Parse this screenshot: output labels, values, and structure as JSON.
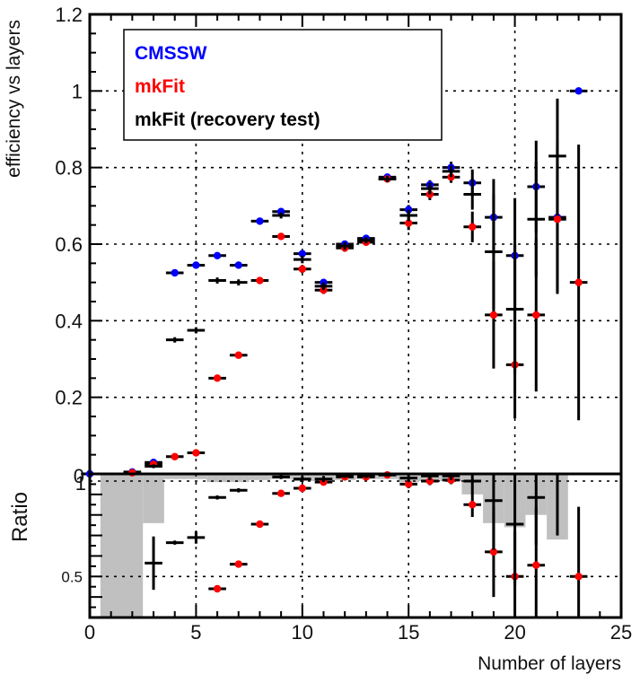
{
  "chart_data": [
    {
      "type": "scatter",
      "name": "efficiency-panel",
      "xlabel": "Number of layers",
      "ylabel": "efficiency vs layers",
      "xlim": [
        0,
        25
      ],
      "ylim": [
        0,
        1.2
      ],
      "xticks": [
        0,
        5,
        10,
        15,
        20,
        25
      ],
      "xtick_labels": [
        "0",
        "5",
        "10",
        "15",
        "20",
        "25"
      ],
      "yticks": [
        0.2,
        0.4,
        0.6,
        0.8,
        1,
        1.2
      ],
      "ytick_labels": [
        "0.2",
        "0.4",
        "0.6",
        "0.8",
        "1",
        "1.2"
      ],
      "yzero_label": "0",
      "grid": true,
      "legend_position": "top-left",
      "series": [
        {
          "name": "CMSSW",
          "color": "#0000ff",
          "points": [
            {
              "x": 0,
              "y": 0.0,
              "err": 0
            },
            {
              "x": 2,
              "y": 0.005,
              "err": 0.003
            },
            {
              "x": 3,
              "y": 0.03,
              "err": 0.005
            },
            {
              "x": 4,
              "y": 0.525,
              "err": 0.005
            },
            {
              "x": 5,
              "y": 0.545,
              "err": 0.005
            },
            {
              "x": 6,
              "y": 0.57,
              "err": 0.006
            },
            {
              "x": 7,
              "y": 0.545,
              "err": 0.007
            },
            {
              "x": 8,
              "y": 0.66,
              "err": 0.006
            },
            {
              "x": 9,
              "y": 0.685,
              "err": 0.006
            },
            {
              "x": 10,
              "y": 0.575,
              "err": 0.008
            },
            {
              "x": 11,
              "y": 0.5,
              "err": 0.008
            },
            {
              "x": 12,
              "y": 0.6,
              "err": 0.008
            },
            {
              "x": 13,
              "y": 0.615,
              "err": 0.008
            },
            {
              "x": 14,
              "y": 0.775,
              "err": 0.006
            },
            {
              "x": 15,
              "y": 0.69,
              "err": 0.012
            },
            {
              "x": 16,
              "y": 0.755,
              "err": 0.012
            },
            {
              "x": 17,
              "y": 0.8,
              "err": 0.015
            },
            {
              "x": 18,
              "y": 0.76,
              "err": 0.035
            },
            {
              "x": 19,
              "y": 0.67,
              "err": 0.1
            },
            {
              "x": 20,
              "y": 0.57,
              "err": 0.15
            },
            {
              "x": 21,
              "y": 0.75,
              "err": 0.12
            },
            {
              "x": 22,
              "y": 0.67,
              "err": 0.2
            },
            {
              "x": 23,
              "y": 1.0,
              "err": 0.003
            }
          ]
        },
        {
          "name": "mkFit",
          "color": "#ff0000",
          "points": [
            {
              "x": 2,
              "y": 0.003,
              "err": 0.003
            },
            {
              "x": 3,
              "y": 0.025,
              "err": 0.005
            },
            {
              "x": 4,
              "y": 0.045,
              "err": 0.005
            },
            {
              "x": 5,
              "y": 0.055,
              "err": 0.005
            },
            {
              "x": 6,
              "y": 0.25,
              "err": 0.008
            },
            {
              "x": 7,
              "y": 0.31,
              "err": 0.008
            },
            {
              "x": 8,
              "y": 0.505,
              "err": 0.008
            },
            {
              "x": 9,
              "y": 0.62,
              "err": 0.008
            },
            {
              "x": 10,
              "y": 0.535,
              "err": 0.01
            },
            {
              "x": 11,
              "y": 0.48,
              "err": 0.01
            },
            {
              "x": 12,
              "y": 0.59,
              "err": 0.01
            },
            {
              "x": 13,
              "y": 0.605,
              "err": 0.008
            },
            {
              "x": 14,
              "y": 0.77,
              "err": 0.008
            },
            {
              "x": 15,
              "y": 0.655,
              "err": 0.018
            },
            {
              "x": 16,
              "y": 0.73,
              "err": 0.015
            },
            {
              "x": 17,
              "y": 0.775,
              "err": 0.015
            },
            {
              "x": 18,
              "y": 0.645,
              "err": 0.04
            },
            {
              "x": 19,
              "y": 0.415,
              "err": 0.14
            },
            {
              "x": 20,
              "y": 0.285,
              "err": 0.14
            },
            {
              "x": 21,
              "y": 0.415,
              "err": 0.2
            },
            {
              "x": 22,
              "y": 0.665,
              "err": 0.19
            },
            {
              "x": 23,
              "y": 0.5,
              "err": 0.36
            }
          ]
        },
        {
          "name": "mkFit (recovery test)",
          "color": "#000000",
          "points": [
            {
              "x": 3,
              "y": 0.02,
              "err": 0.005
            },
            {
              "x": 4,
              "y": 0.35,
              "err": 0.007
            },
            {
              "x": 5,
              "y": 0.375,
              "err": 0.008
            },
            {
              "x": 6,
              "y": 0.505,
              "err": 0.008
            },
            {
              "x": 7,
              "y": 0.5,
              "err": 0.008
            },
            {
              "x": 9,
              "y": 0.675,
              "err": 0.008
            },
            {
              "x": 10,
              "y": 0.56,
              "err": 0.01
            },
            {
              "x": 11,
              "y": 0.49,
              "err": 0.01
            },
            {
              "x": 12,
              "y": 0.595,
              "err": 0.01
            },
            {
              "x": 13,
              "y": 0.61,
              "err": 0.008
            },
            {
              "x": 14,
              "y": 0.77,
              "err": 0.008
            },
            {
              "x": 15,
              "y": 0.675,
              "err": 0.015
            },
            {
              "x": 16,
              "y": 0.745,
              "err": 0.015
            },
            {
              "x": 17,
              "y": 0.79,
              "err": 0.015
            },
            {
              "x": 18,
              "y": 0.73,
              "err": 0.04
            },
            {
              "x": 19,
              "y": 0.58,
              "err": 0.15
            },
            {
              "x": 20,
              "y": 0.43,
              "err": 0.17
            },
            {
              "x": 21,
              "y": 0.665,
              "err": 0.15
            },
            {
              "x": 22,
              "y": 0.83,
              "err": 0.15
            },
            {
              "x": 23,
              "y": 0.0,
              "err": 0
            }
          ]
        }
      ]
    },
    {
      "type": "scatter",
      "name": "ratio-panel",
      "ylabel": "Ratio",
      "xlim": [
        0,
        25
      ],
      "ylim": [
        0.3,
        1.0
      ],
      "yticks": [
        0.5
      ],
      "ytick_labels": [
        "0.5"
      ],
      "ytop_label": "1",
      "grid": true,
      "band": {
        "color": "#c0c0c0",
        "description_bins": [
          {
            "x0": 0.5,
            "x1": 1.5,
            "low": 0.3,
            "high": 1.0
          },
          {
            "x0": 1.5,
            "x1": 2.5,
            "low": 0.3,
            "high": 1.0
          },
          {
            "x0": 2.5,
            "x1": 3.5,
            "low": 0.76,
            "high": 1.0
          },
          {
            "x0": 3.5,
            "x1": 4.5,
            "low": 0.975,
            "high": 1.0
          },
          {
            "x0": 4.5,
            "x1": 5.5,
            "low": 0.975,
            "high": 1.0
          },
          {
            "x0": 5.5,
            "x1": 6.5,
            "low": 0.96,
            "high": 1.0
          },
          {
            "x0": 6.5,
            "x1": 7.5,
            "low": 0.96,
            "high": 1.0
          },
          {
            "x0": 7.5,
            "x1": 8.5,
            "low": 0.97,
            "high": 1.0
          },
          {
            "x0": 8.5,
            "x1": 9.5,
            "low": 0.975,
            "high": 1.0
          },
          {
            "x0": 9.5,
            "x1": 10.5,
            "low": 0.965,
            "high": 1.0
          },
          {
            "x0": 10.5,
            "x1": 11.5,
            "low": 0.965,
            "high": 1.0
          },
          {
            "x0": 11.5,
            "x1": 12.5,
            "low": 0.97,
            "high": 1.0
          },
          {
            "x0": 12.5,
            "x1": 13.5,
            "low": 0.975,
            "high": 1.0
          },
          {
            "x0": 13.5,
            "x1": 14.5,
            "low": 0.975,
            "high": 1.0
          },
          {
            "x0": 14.5,
            "x1": 15.5,
            "low": 0.96,
            "high": 1.0
          },
          {
            "x0": 15.5,
            "x1": 16.5,
            "low": 0.965,
            "high": 1.0
          },
          {
            "x0": 16.5,
            "x1": 17.5,
            "low": 0.965,
            "high": 1.0
          },
          {
            "x0": 17.5,
            "x1": 18.5,
            "low": 0.9,
            "high": 1.0
          },
          {
            "x0": 18.5,
            "x1": 19.5,
            "low": 0.76,
            "high": 1.0
          },
          {
            "x0": 19.5,
            "x1": 20.5,
            "low": 0.74,
            "high": 1.0
          },
          {
            "x0": 20.5,
            "x1": 21.5,
            "low": 0.8,
            "high": 1.0
          },
          {
            "x0": 21.5,
            "x1": 22.5,
            "low": 0.68,
            "high": 1.0
          },
          {
            "x0": 22.5,
            "x1": 23.5,
            "low": 1.0,
            "high": 1.0
          }
        ]
      },
      "series": [
        {
          "name": "mkFit",
          "color": "#ff0000",
          "points": [
            {
              "x": 8,
              "y": 0.755,
              "err": 0.01
            },
            {
              "x": 9,
              "y": 0.905,
              "err": 0.01
            },
            {
              "x": 10,
              "y": 0.93,
              "err": 0.015
            },
            {
              "x": 11,
              "y": 0.96,
              "err": 0.015
            },
            {
              "x": 12,
              "y": 0.985,
              "err": 0.01
            },
            {
              "x": 13,
              "y": 0.985,
              "err": 0.01
            },
            {
              "x": 14,
              "y": 0.995,
              "err": 0.008
            },
            {
              "x": 15,
              "y": 0.95,
              "err": 0.02
            },
            {
              "x": 16,
              "y": 0.965,
              "err": 0.02
            },
            {
              "x": 17,
              "y": 0.97,
              "err": 0.02
            },
            {
              "x": 18,
              "y": 0.85,
              "err": 0.06
            },
            {
              "x": 19,
              "y": 0.62,
              "err": 0.22
            },
            {
              "x": 20,
              "y": 0.5,
              "err": 0.22
            },
            {
              "x": 21,
              "y": 0.555,
              "err": 0.28
            },
            {
              "x": 23,
              "y": 0.5,
              "err": 0.34
            },
            {
              "x": 7,
              "y": 0.56,
              "err": 0.01
            },
            {
              "x": 6,
              "y": 0.44,
              "err": 0.01
            }
          ]
        },
        {
          "name": "mkFit (recovery test)",
          "color": "#000000",
          "points": [
            {
              "x": 3,
              "y": 0.565,
              "err": 0.13
            },
            {
              "x": 4,
              "y": 0.665,
              "err": 0.01
            },
            {
              "x": 5,
              "y": 0.69,
              "err": 0.03
            },
            {
              "x": 6,
              "y": 0.885,
              "err": 0.01
            },
            {
              "x": 7,
              "y": 0.92,
              "err": 0.01
            },
            {
              "x": 9,
              "y": 0.985,
              "err": 0.01
            },
            {
              "x": 10,
              "y": 0.975,
              "err": 0.015
            },
            {
              "x": 11,
              "y": 0.975,
              "err": 0.015
            },
            {
              "x": 12,
              "y": 0.99,
              "err": 0.01
            },
            {
              "x": 13,
              "y": 0.99,
              "err": 0.01
            },
            {
              "x": 14,
              "y": 0.995,
              "err": 0.008
            },
            {
              "x": 15,
              "y": 0.98,
              "err": 0.02
            },
            {
              "x": 16,
              "y": 0.99,
              "err": 0.02
            },
            {
              "x": 17,
              "y": 0.99,
              "err": 0.02
            },
            {
              "x": 18,
              "y": 0.965,
              "err": 0.06
            },
            {
              "x": 19,
              "y": 0.87,
              "err": 0.24
            },
            {
              "x": 20,
              "y": 0.755,
              "err": 0.3
            },
            {
              "x": 21,
              "y": 0.885,
              "err": 0.23
            },
            {
              "x": 22,
              "y": 1.0,
              "err": 0.3
            }
          ]
        }
      ]
    }
  ],
  "legend": {
    "items": [
      {
        "label": "CMSSW",
        "color": "#0000ff"
      },
      {
        "label": "mkFit",
        "color": "#ff0000"
      },
      {
        "label": "mkFit (recovery test)",
        "color": "#000000"
      }
    ]
  }
}
